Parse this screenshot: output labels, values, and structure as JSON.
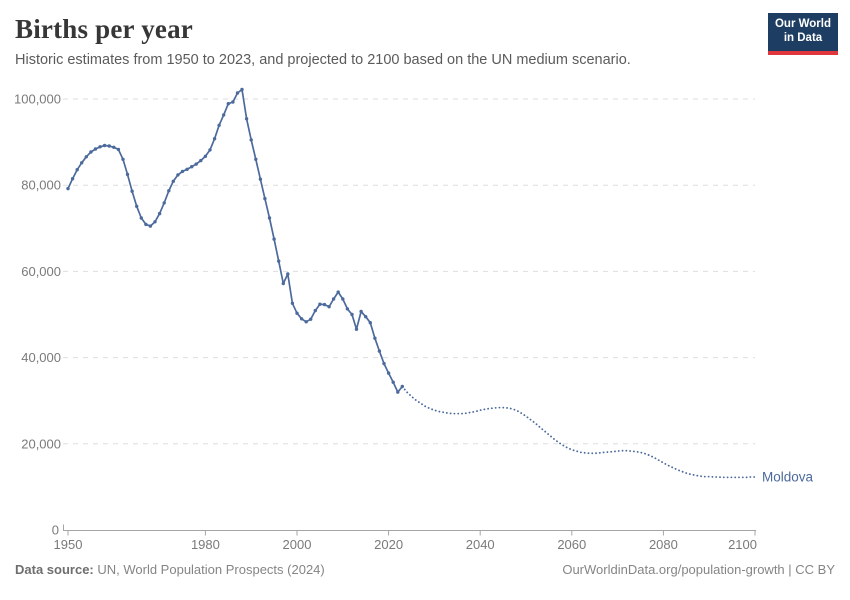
{
  "header": {
    "title": "Births per year",
    "subtitle": "Historic estimates from 1950 to 2023, and projected to 2100 based on the UN medium scenario."
  },
  "logo": {
    "line1": "Our World",
    "line2": "in Data"
  },
  "footer": {
    "source_label": "Data source:",
    "source_text": " UN, World Population Prospects (2024)",
    "citation": "OurWorldinData.org/population-growth | CC BY"
  },
  "colors": {
    "line": "#4C6A9C",
    "grid": "#dedede",
    "axis": "#a5a5a5",
    "tick_text": "#7a7a7a",
    "logo_navy": "#1d3d63",
    "logo_red": "#e0373f",
    "title_text": "#373737",
    "subtitle_text": "#5b5b5b"
  },
  "chart_data": {
    "type": "line",
    "title": "Births per year",
    "entity_label": "Moldova",
    "xlabel": "",
    "ylabel": "",
    "xlim": [
      1950,
      2100
    ],
    "ylim": [
      0,
      100000
    ],
    "grid": "horizontal dashed",
    "legend_position": "end-of-line label",
    "x_ticks": [
      1950,
      1980,
      2000,
      2020,
      2040,
      2060,
      2080,
      2100
    ],
    "y_ticks": [
      {
        "v": 0,
        "label": "0"
      },
      {
        "v": 20000,
        "label": "20,000"
      },
      {
        "v": 40000,
        "label": "40,000"
      },
      {
        "v": 60000,
        "label": "60,000"
      },
      {
        "v": 80000,
        "label": "80,000"
      },
      {
        "v": 100000,
        "label": "100,000"
      }
    ],
    "series": [
      {
        "name": "Historic estimates (1950-2023)",
        "style": "solid-with-markers",
        "points": [
          [
            1950,
            79200
          ],
          [
            1951,
            81500
          ],
          [
            1952,
            83600
          ],
          [
            1953,
            85200
          ],
          [
            1954,
            86600
          ],
          [
            1955,
            87700
          ],
          [
            1956,
            88400
          ],
          [
            1957,
            88900
          ],
          [
            1958,
            89200
          ],
          [
            1959,
            89100
          ],
          [
            1960,
            88800
          ],
          [
            1961,
            88300
          ],
          [
            1962,
            86000
          ],
          [
            1963,
            82500
          ],
          [
            1964,
            78600
          ],
          [
            1965,
            75100
          ],
          [
            1966,
            72400
          ],
          [
            1967,
            70900
          ],
          [
            1968,
            70500
          ],
          [
            1969,
            71500
          ],
          [
            1970,
            73400
          ],
          [
            1971,
            75900
          ],
          [
            1972,
            78700
          ],
          [
            1973,
            80900
          ],
          [
            1974,
            82400
          ],
          [
            1975,
            83200
          ],
          [
            1976,
            83700
          ],
          [
            1977,
            84300
          ],
          [
            1978,
            84900
          ],
          [
            1979,
            85700
          ],
          [
            1980,
            86700
          ],
          [
            1981,
            88200
          ],
          [
            1982,
            90800
          ],
          [
            1983,
            93900
          ],
          [
            1984,
            96300
          ],
          [
            1985,
            98900
          ],
          [
            1986,
            99300
          ],
          [
            1987,
            101400
          ],
          [
            1988,
            102200
          ],
          [
            1989,
            95400
          ],
          [
            1990,
            90500
          ],
          [
            1991,
            86000
          ],
          [
            1992,
            81400
          ],
          [
            1993,
            76900
          ],
          [
            1994,
            72400
          ],
          [
            1995,
            67500
          ],
          [
            1996,
            62400
          ],
          [
            1997,
            57200
          ],
          [
            1998,
            59400
          ],
          [
            1999,
            52600
          ],
          [
            2000,
            50300
          ],
          [
            2001,
            49000
          ],
          [
            2002,
            48300
          ],
          [
            2003,
            48900
          ],
          [
            2004,
            50900
          ],
          [
            2005,
            52400
          ],
          [
            2006,
            52300
          ],
          [
            2007,
            51800
          ],
          [
            2008,
            53600
          ],
          [
            2009,
            55200
          ],
          [
            2010,
            53600
          ],
          [
            2011,
            51300
          ],
          [
            2012,
            50000
          ],
          [
            2013,
            46600
          ],
          [
            2014,
            50700
          ],
          [
            2015,
            49500
          ],
          [
            2016,
            48100
          ],
          [
            2017,
            44500
          ],
          [
            2018,
            41500
          ],
          [
            2019,
            38600
          ],
          [
            2020,
            36400
          ],
          [
            2021,
            34300
          ],
          [
            2022,
            32000
          ],
          [
            2023,
            33300
          ]
        ]
      },
      {
        "name": "Projected, UN medium scenario (2023-2100)",
        "style": "dotted",
        "points": [
          [
            2023,
            33300
          ],
          [
            2024,
            32000
          ],
          [
            2025,
            31000
          ],
          [
            2026,
            30100
          ],
          [
            2027,
            29400
          ],
          [
            2028,
            28700
          ],
          [
            2029,
            28200
          ],
          [
            2030,
            27800
          ],
          [
            2031,
            27500
          ],
          [
            2032,
            27300
          ],
          [
            2033,
            27100
          ],
          [
            2034,
            27000
          ],
          [
            2035,
            27000
          ],
          [
            2036,
            27000
          ],
          [
            2037,
            27100
          ],
          [
            2038,
            27300
          ],
          [
            2039,
            27500
          ],
          [
            2040,
            27800
          ],
          [
            2041,
            28000
          ],
          [
            2042,
            28200
          ],
          [
            2043,
            28300
          ],
          [
            2044,
            28400
          ],
          [
            2045,
            28400
          ],
          [
            2046,
            28300
          ],
          [
            2047,
            28100
          ],
          [
            2048,
            27700
          ],
          [
            2049,
            27100
          ],
          [
            2050,
            26400
          ],
          [
            2051,
            25600
          ],
          [
            2052,
            24800
          ],
          [
            2053,
            23900
          ],
          [
            2054,
            23000
          ],
          [
            2055,
            22100
          ],
          [
            2056,
            21200
          ],
          [
            2057,
            20400
          ],
          [
            2058,
            19700
          ],
          [
            2059,
            19100
          ],
          [
            2060,
            18600
          ],
          [
            2061,
            18300
          ],
          [
            2062,
            18000
          ],
          [
            2063,
            17900
          ],
          [
            2064,
            17800
          ],
          [
            2065,
            17800
          ],
          [
            2066,
            17900
          ],
          [
            2067,
            18000
          ],
          [
            2068,
            18100
          ],
          [
            2069,
            18200
          ],
          [
            2070,
            18300
          ],
          [
            2071,
            18400
          ],
          [
            2072,
            18400
          ],
          [
            2073,
            18300
          ],
          [
            2074,
            18200
          ],
          [
            2075,
            18000
          ],
          [
            2076,
            17700
          ],
          [
            2077,
            17300
          ],
          [
            2078,
            16800
          ],
          [
            2079,
            16200
          ],
          [
            2080,
            15600
          ],
          [
            2081,
            15000
          ],
          [
            2082,
            14500
          ],
          [
            2083,
            14000
          ],
          [
            2084,
            13600
          ],
          [
            2085,
            13200
          ],
          [
            2086,
            12900
          ],
          [
            2087,
            12700
          ],
          [
            2088,
            12500
          ],
          [
            2089,
            12400
          ],
          [
            2090,
            12400
          ],
          [
            2091,
            12300
          ],
          [
            2092,
            12300
          ],
          [
            2093,
            12200
          ],
          [
            2094,
            12200
          ],
          [
            2095,
            12200
          ],
          [
            2096,
            12200
          ],
          [
            2097,
            12200
          ],
          [
            2098,
            12200
          ],
          [
            2099,
            12300
          ],
          [
            2100,
            12300
          ]
        ]
      }
    ]
  }
}
